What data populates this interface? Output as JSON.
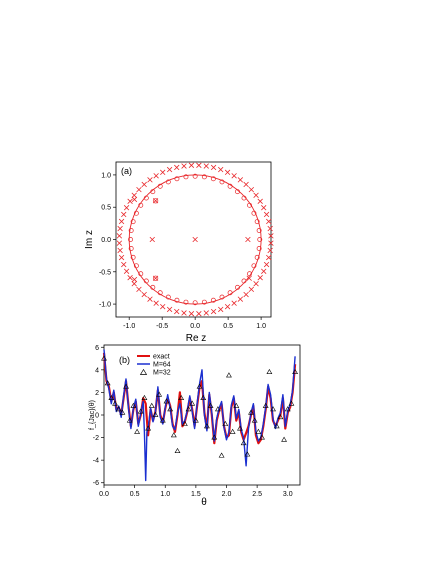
{
  "chart_data": [
    {
      "panel": "(a)",
      "type": "scatter",
      "xlabel": "Re z",
      "ylabel": "Im z",
      "xlim": [
        -1.2,
        1.15
      ],
      "ylim": [
        -1.2,
        1.2
      ],
      "xticks": [
        "-1.0",
        "-0.5",
        "0.0",
        "0.5",
        "1.0"
      ],
      "xtick_values": [
        -1.0,
        -0.5,
        0.0,
        0.5,
        1.0
      ],
      "yticks": [
        "1.0",
        "0.5",
        "0.0",
        "-0.5",
        "-1.0"
      ],
      "ytick_values": [
        1.0,
        0.5,
        0.0,
        -0.5,
        -1.0
      ],
      "color": "#e8262a",
      "unit_circle": {
        "radius": 1.0
      },
      "outer_crosses": {
        "radius": 1.15,
        "count": 64
      },
      "circle_markers": {
        "radius": 0.98,
        "count": 44
      },
      "inner_crosses": [
        {
          "x": 0.0,
          "y": 0.0
        },
        {
          "x": -0.65,
          "y": 0.0
        },
        {
          "x": 0.8,
          "y": 0.0
        },
        {
          "x": -0.92,
          "y": 0.62
        },
        {
          "x": -0.92,
          "y": -0.62
        },
        {
          "x": -0.6,
          "y": 0.6
        },
        {
          "x": -0.6,
          "y": -0.6
        },
        {
          "x": 0.82,
          "y": -0.6
        }
      ],
      "inner_circles": [
        {
          "x": -0.6,
          "y": 0.6
        },
        {
          "x": -0.6,
          "y": -0.6
        }
      ]
    },
    {
      "panel": "(b)",
      "type": "line",
      "xlabel": "θ",
      "ylabel": "f_{Jac}(θ)",
      "xlim": [
        0.0,
        3.2
      ],
      "ylim": [
        -6.2,
        6.2
      ],
      "xticks": [
        "0.0",
        "0.5",
        "1.0",
        "1.5",
        "2.0",
        "2.5",
        "3.0"
      ],
      "xtick_values": [
        0.0,
        0.5,
        1.0,
        1.5,
        2.0,
        2.5,
        3.0
      ],
      "yticks": [
        "6",
        "4",
        "2",
        "0",
        "-2",
        "-4",
        "-6"
      ],
      "ytick_values": [
        6,
        4,
        2,
        0,
        -2,
        -4,
        -6
      ],
      "legend_position": "top-left",
      "series": [
        {
          "name": "exact",
          "color": "#e01010",
          "x": [
            0.0,
            0.04,
            0.08,
            0.12,
            0.16,
            0.2,
            0.24,
            0.28,
            0.32,
            0.36,
            0.4,
            0.44,
            0.48,
            0.52,
            0.56,
            0.6,
            0.64,
            0.68,
            0.72,
            0.76,
            0.8,
            0.84,
            0.88,
            0.92,
            0.96,
            1.0,
            1.04,
            1.08,
            1.12,
            1.16,
            1.2,
            1.24,
            1.28,
            1.32,
            1.36,
            1.4,
            1.44,
            1.48,
            1.52,
            1.56,
            1.6,
            1.64,
            1.68,
            1.72,
            1.76,
            1.8,
            1.84,
            1.88,
            1.92,
            1.96,
            2.0,
            2.04,
            2.08,
            2.12,
            2.16,
            2.2,
            2.24,
            2.28,
            2.32,
            2.36,
            2.4,
            2.44,
            2.48,
            2.52,
            2.56,
            2.6,
            2.64,
            2.68,
            2.72,
            2.76,
            2.8,
            2.84,
            2.88,
            2.92,
            2.96,
            3.0,
            3.04,
            3.08,
            3.12
          ],
          "y": [
            5.5,
            3.0,
            2.5,
            1.2,
            2.0,
            0.5,
            0.7,
            0.0,
            1.5,
            3.0,
            0.8,
            -1.0,
            0.5,
            1.2,
            -0.8,
            0.0,
            1.5,
            1.0,
            -1.8,
            0.5,
            -0.5,
            0.3,
            2.2,
            0.0,
            -0.7,
            0.6,
            1.5,
            0.8,
            -0.8,
            -1.5,
            0.0,
            2.0,
            -1.0,
            -0.6,
            0.3,
            1.5,
            0.5,
            -1.0,
            0.8,
            2.5,
            3.0,
            0.2,
            -1.2,
            1.8,
            0.0,
            -2.5,
            -0.5,
            0.4,
            1.0,
            -1.0,
            -2.0,
            -1.8,
            0.7,
            1.5,
            -0.5,
            0.3,
            -1.5,
            -2.2,
            -1.6,
            -1.0,
            0.0,
            0.8,
            -1.8,
            -2.5,
            -2.2,
            -1.0,
            0.5,
            2.5,
            1.5,
            -0.5,
            -1.0,
            -0.5,
            0.0,
            1.5,
            -1.2,
            0.2,
            0.7,
            2.0,
            4.5
          ]
        },
        {
          "name": "M=64",
          "color": "#1a2fd0",
          "x": [
            0.0,
            0.04,
            0.08,
            0.12,
            0.16,
            0.2,
            0.24,
            0.28,
            0.32,
            0.36,
            0.4,
            0.44,
            0.48,
            0.52,
            0.56,
            0.6,
            0.64,
            0.66,
            0.68,
            0.7,
            0.72,
            0.76,
            0.8,
            0.84,
            0.88,
            0.92,
            0.96,
            1.0,
            1.04,
            1.08,
            1.12,
            1.16,
            1.2,
            1.24,
            1.28,
            1.32,
            1.36,
            1.4,
            1.44,
            1.48,
            1.52,
            1.56,
            1.6,
            1.64,
            1.68,
            1.72,
            1.76,
            1.8,
            1.84,
            1.88,
            1.92,
            1.96,
            2.0,
            2.04,
            2.08,
            2.12,
            2.16,
            2.2,
            2.24,
            2.28,
            2.32,
            2.36,
            2.4,
            2.44,
            2.48,
            2.52,
            2.56,
            2.6,
            2.64,
            2.68,
            2.72,
            2.76,
            2.8,
            2.84,
            2.88,
            2.92,
            2.96,
            3.0,
            3.04,
            3.08,
            3.12
          ],
          "y": [
            5.8,
            3.2,
            2.3,
            1.0,
            2.2,
            0.3,
            0.8,
            -0.2,
            1.7,
            3.2,
            0.6,
            -1.2,
            0.6,
            1.4,
            -1.0,
            0.2,
            1.2,
            -1.5,
            -5.8,
            -1.5,
            -1.2,
            0.6,
            -0.6,
            0.2,
            2.5,
            -0.2,
            -0.8,
            0.7,
            1.8,
            0.6,
            -1.0,
            -1.3,
            0.2,
            1.0,
            -0.8,
            -0.5,
            0.4,
            1.7,
            0.3,
            -1.2,
            1.0,
            2.8,
            4.0,
            0.0,
            -1.4,
            2.0,
            0.2,
            -2.3,
            -0.3,
            0.6,
            1.2,
            -1.1,
            -2.2,
            -1.5,
            0.9,
            1.7,
            -0.3,
            0.5,
            -1.3,
            -2.0,
            -4.5,
            -1.2,
            0.2,
            1.0,
            -1.5,
            -2.3,
            -2.0,
            -0.8,
            0.7,
            2.7,
            1.8,
            -0.3,
            -1.2,
            -0.3,
            0.2,
            1.8,
            -1.0,
            0.4,
            0.9,
            2.2,
            5.2
          ]
        },
        {
          "name": "M=32",
          "color": "#000000",
          "marker": "triangle",
          "x": [
            0.0,
            0.06,
            0.12,
            0.18,
            0.24,
            0.3,
            0.36,
            0.42,
            0.48,
            0.54,
            0.6,
            0.66,
            0.72,
            0.78,
            0.84,
            0.9,
            0.96,
            1.02,
            1.08,
            1.14,
            1.2,
            1.26,
            1.32,
            1.38,
            1.44,
            1.5,
            1.56,
            1.62,
            1.68,
            1.74,
            1.8,
            1.86,
            1.92,
            1.98,
            2.04,
            2.1,
            2.16,
            2.22,
            2.28,
            2.34,
            2.4,
            2.46,
            2.52,
            2.58,
            2.64,
            2.7,
            2.76,
            2.82,
            2.88,
            2.94,
            3.0,
            3.06,
            3.12
          ],
          "y": [
            5.0,
            2.8,
            1.5,
            1.0,
            0.5,
            0.2,
            2.5,
            -0.5,
            0.8,
            -1.5,
            0.3,
            1.5,
            -1.2,
            0.8,
            0.0,
            1.8,
            -0.5,
            1.2,
            0.5,
            -1.8,
            -3.2,
            1.5,
            -0.8,
            0.5,
            1.0,
            -0.5,
            2.5,
            1.5,
            -1.0,
            0.8,
            -2.0,
            0.5,
            -3.6,
            -0.8,
            3.5,
            -1.5,
            0.8,
            -1.2,
            -2.5,
            -3.5,
            0.2,
            -0.5,
            -1.5,
            -2.0,
            0.8,
            3.8,
            0.5,
            -1.0,
            -0.2,
            -2.2,
            0.5,
            1.0,
            3.8
          ]
        }
      ]
    }
  ]
}
